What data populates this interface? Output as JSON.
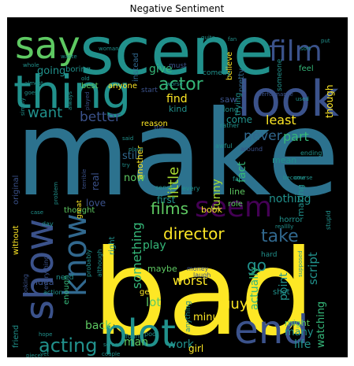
{
  "chart_data": {
    "type": "wordcloud",
    "title": "Negative Sentiment",
    "background": "#000000",
    "palette": [
      "#fde725",
      "#21918c",
      "#3b528b",
      "#5ec962",
      "#440154",
      "#31688e",
      "#35b779",
      "#aadc32",
      "#2c728e",
      "#472d7b"
    ],
    "words": [
      {
        "text": "make",
        "weight": 100,
        "color": "#2c728e"
      },
      {
        "text": "bad",
        "weight": 96,
        "color": "#fde725"
      },
      {
        "text": "scene",
        "weight": 72,
        "color": "#21918c"
      },
      {
        "text": "look",
        "weight": 52,
        "color": "#3b528b"
      },
      {
        "text": "thing",
        "weight": 50,
        "color": "#21918c"
      },
      {
        "text": "say",
        "weight": 42,
        "color": "#5ec962"
      },
      {
        "text": "show",
        "weight": 44,
        "color": "#3b528b"
      },
      {
        "text": "know",
        "weight": 34,
        "color": "#31688e"
      },
      {
        "text": "plot",
        "weight": 38,
        "color": "#21918c"
      },
      {
        "text": "end",
        "weight": 36,
        "color": "#3b528b"
      },
      {
        "text": "seem",
        "weight": 30,
        "color": "#440154"
      },
      {
        "text": "acting",
        "weight": 20,
        "color": "#21918c"
      },
      {
        "text": "film",
        "weight": 30,
        "color": "#3b528b"
      },
      {
        "text": "films",
        "weight": 17,
        "color": "#5ec962"
      },
      {
        "text": "director",
        "weight": 17,
        "color": "#fde725"
      },
      {
        "text": "take",
        "weight": 18,
        "color": "#31688e"
      },
      {
        "text": "actor",
        "weight": 18,
        "color": "#35b779"
      },
      {
        "text": "never",
        "weight": 15,
        "color": "#31688e"
      },
      {
        "text": "better",
        "weight": 14,
        "color": "#3b528b"
      },
      {
        "text": "want",
        "weight": 15,
        "color": "#21918c"
      },
      {
        "text": "little",
        "weight": 15,
        "color": "#aadc32"
      },
      {
        "text": "funny",
        "weight": 12,
        "color": "#aadc32"
      },
      {
        "text": "something",
        "weight": 14,
        "color": "#35b779"
      },
      {
        "text": "fact",
        "weight": 12,
        "color": "#35b779"
      },
      {
        "text": "least",
        "weight": 12,
        "color": "#fde725"
      },
      {
        "text": "come",
        "weight": 10,
        "color": "#21918c"
      },
      {
        "text": "part",
        "weight": 12,
        "color": "#35b779"
      },
      {
        "text": "go",
        "weight": 14,
        "color": "#21918c"
      },
      {
        "text": "script",
        "weight": 12,
        "color": "#21918c"
      },
      {
        "text": "watching",
        "weight": 11,
        "color": "#35b779"
      },
      {
        "text": "actually",
        "weight": 12,
        "color": "#35b779"
      },
      {
        "text": "worst",
        "weight": 13,
        "color": "#fde725"
      },
      {
        "text": "guy",
        "weight": 14,
        "color": "#fde725"
      },
      {
        "text": "point",
        "weight": 12,
        "color": "#21918c"
      },
      {
        "text": "back",
        "weight": 12,
        "color": "#5ec962"
      },
      {
        "text": "work",
        "weight": 12,
        "color": "#21918c"
      },
      {
        "text": "man",
        "weight": 12,
        "color": "#5ec962"
      },
      {
        "text": "minute",
        "weight": 11,
        "color": "#fde725"
      },
      {
        "text": "life",
        "weight": 12,
        "color": "#21918c"
      },
      {
        "text": "many",
        "weight": 11,
        "color": "#21918c"
      },
      {
        "text": "lot",
        "weight": 12,
        "color": "#5ec962"
      },
      {
        "text": "play",
        "weight": 11,
        "color": "#35b779"
      },
      {
        "text": "nothing",
        "weight": 11,
        "color": "#21918c"
      },
      {
        "text": "making",
        "weight": 9,
        "color": "#21918c"
      },
      {
        "text": "give",
        "weight": 11,
        "color": "#35b779"
      },
      {
        "text": "going",
        "weight": 10,
        "color": "#21918c"
      },
      {
        "text": "find",
        "weight": 11,
        "color": "#fde725"
      },
      {
        "text": "still",
        "weight": 10,
        "color": "#31688e"
      },
      {
        "text": "now",
        "weight": 10,
        "color": "#5ec962"
      },
      {
        "text": "another",
        "weight": 9,
        "color": "#fde725"
      },
      {
        "text": "real",
        "weight": 10,
        "color": "#3b528b"
      },
      {
        "text": "love",
        "weight": 9,
        "color": "#3b528b"
      },
      {
        "text": "first",
        "weight": 10,
        "color": "#21918c"
      },
      {
        "text": "book",
        "weight": 9,
        "color": "#fde725"
      },
      {
        "text": "thought",
        "weight": 8,
        "color": "#5ec962"
      },
      {
        "text": "though",
        "weight": 10,
        "color": "#fde725"
      },
      {
        "text": "trying",
        "weight": 8,
        "color": "#21918c"
      },
      {
        "text": "reason",
        "weight": 8,
        "color": "#fde725"
      },
      {
        "text": "kind",
        "weight": 8,
        "color": "#21918c"
      },
      {
        "text": "feel",
        "weight": 8,
        "color": "#35b779"
      },
      {
        "text": "pretty",
        "weight": 8,
        "color": "#31688e"
      },
      {
        "text": "mean",
        "weight": 8,
        "color": "#21918c"
      },
      {
        "text": "line",
        "weight": 8,
        "color": "#5ec962"
      },
      {
        "text": "role",
        "weight": 7,
        "color": "#5ec962"
      },
      {
        "text": "horror",
        "weight": 7,
        "color": "#21918c"
      },
      {
        "text": "maybe",
        "weight": 8,
        "color": "#5ec962"
      },
      {
        "text": "idea",
        "weight": 8,
        "color": "#3b528b"
      },
      {
        "text": "kid",
        "weight": 8,
        "color": "#fde725"
      },
      {
        "text": "might",
        "weight": 8,
        "color": "#5ec962"
      },
      {
        "text": "friend",
        "weight": 8,
        "color": "#21918c"
      },
      {
        "text": "gets",
        "weight": 7,
        "color": "#fde725"
      },
      {
        "text": "without",
        "weight": 7,
        "color": "#fde725"
      },
      {
        "text": "original",
        "weight": 7,
        "color": "#3b528b"
      },
      {
        "text": "great",
        "weight": 7,
        "color": "#fde725"
      },
      {
        "text": "enough",
        "weight": 7,
        "color": "#35b779"
      },
      {
        "text": "right",
        "weight": 7,
        "color": "#21918c"
      },
      {
        "text": "instead",
        "weight": 7,
        "color": "#31688e"
      },
      {
        "text": "best",
        "weight": 7,
        "color": "#5ec962"
      },
      {
        "text": "boring",
        "weight": 7,
        "color": "#21918c"
      },
      {
        "text": "anyone",
        "weight": 7,
        "color": "#fde725"
      },
      {
        "text": "start",
        "weight": 7,
        "color": "#3b528b"
      },
      {
        "text": "saw",
        "weight": 8,
        "color": "#3b528b"
      },
      {
        "text": "long",
        "weight": 7,
        "color": "#21918c"
      },
      {
        "text": "believe",
        "weight": 7,
        "color": "#fde725"
      },
      {
        "text": "someone",
        "weight": 6,
        "color": "#21918c"
      },
      {
        "text": "must",
        "weight": 7,
        "color": "#3b528b"
      },
      {
        "text": "comedy",
        "weight": 6,
        "color": "#21918c"
      },
      {
        "text": "interesting",
        "weight": 6,
        "color": "#35b779"
      },
      {
        "text": "cast",
        "weight": 7,
        "color": "#21918c"
      },
      {
        "text": "either",
        "weight": 6,
        "color": "#21918c"
      },
      {
        "text": "done",
        "weight": 6,
        "color": "#21918c"
      },
      {
        "text": "watched",
        "weight": 6,
        "color": "#3b528b"
      },
      {
        "text": "found",
        "weight": 6,
        "color": "#21918c"
      },
      {
        "text": "poor",
        "weight": 6,
        "color": "#21918c"
      },
      {
        "text": "girl",
        "weight": 8,
        "color": "#fde725"
      },
      {
        "text": "money",
        "weight": 6,
        "color": "#3b528b"
      },
      {
        "text": "laugh",
        "weight": 6,
        "color": "#3b528b"
      },
      {
        "text": "shot",
        "weight": 7,
        "color": "#21918c"
      },
      {
        "text": "hard",
        "weight": 7,
        "color": "#21918c"
      },
      {
        "text": "sense",
        "weight": 6,
        "color": "#21918c"
      },
      {
        "text": "every",
        "weight": 6,
        "color": "#21918c"
      },
      {
        "text": "far",
        "weight": 6,
        "color": "#21918c"
      },
      {
        "text": "awful",
        "weight": 6,
        "color": "#21918c"
      },
      {
        "text": "around",
        "weight": 6,
        "color": "#3b528b"
      },
      {
        "text": "ending",
        "weight": 6,
        "color": "#21918c"
      },
      {
        "text": "stupid",
        "weight": 6,
        "color": "#21918c"
      },
      {
        "text": "probably",
        "weight": 6,
        "color": "#21918c"
      },
      {
        "text": "although",
        "weight": 6,
        "color": "#21918c"
      },
      {
        "text": "anything",
        "weight": 6,
        "color": "#21918c"
      },
      {
        "text": "action",
        "weight": 6,
        "color": "#21918c"
      },
      {
        "text": "everything",
        "weight": 6,
        "color": "#3b528b"
      },
      {
        "text": "looking",
        "weight": 6,
        "color": "#3b528b"
      },
      {
        "text": "day",
        "weight": 6,
        "color": "#21918c"
      },
      {
        "text": "need",
        "weight": 6,
        "color": "#21918c"
      },
      {
        "text": "rather",
        "weight": 6,
        "color": "#21918c"
      },
      {
        "text": "audience",
        "weight": 6,
        "color": "#3b528b"
      },
      {
        "text": "woman",
        "weight": 5,
        "color": "#21918c"
      },
      {
        "text": "waste",
        "weight": 5,
        "color": "#21918c"
      },
      {
        "text": "whole",
        "weight": 5,
        "color": "#21918c"
      },
      {
        "text": "almost",
        "weight": 5,
        "color": "#21918c"
      },
      {
        "text": "goes",
        "weight": 5,
        "color": "#21918c"
      },
      {
        "text": "always",
        "weight": 5,
        "color": "#21918c"
      },
      {
        "text": "played",
        "weight": 5,
        "color": "#3b528b"
      },
      {
        "text": "simply",
        "weight": 5,
        "color": "#21918c"
      },
      {
        "text": "sort",
        "weight": 5,
        "color": "#21918c"
      },
      {
        "text": "put",
        "weight": 5,
        "color": "#21918c"
      },
      {
        "text": "used",
        "weight": 5,
        "color": "#21918c"
      },
      {
        "text": "performance",
        "weight": 5,
        "color": "#3b528b"
      },
      {
        "text": "course",
        "weight": 5,
        "color": "#21918c"
      },
      {
        "text": "supposed",
        "weight": 5,
        "color": "#21918c"
      },
      {
        "text": "realllly",
        "weight": 5,
        "color": "#21918c"
      },
      {
        "text": "become",
        "weight": 5,
        "color": "#21918c"
      },
      {
        "text": "terrible",
        "weight": 5,
        "color": "#3b528b"
      },
      {
        "text": "place",
        "weight": 5,
        "color": "#21918c"
      },
      {
        "text": "try",
        "weight": 5,
        "color": "#21918c"
      },
      {
        "text": "said",
        "weight": 5,
        "color": "#21918c"
      },
      {
        "text": "worse",
        "weight": 5,
        "color": "#21918c"
      },
      {
        "text": "old",
        "weight": 5,
        "color": "#21918c"
      },
      {
        "text": "fan",
        "weight": 5,
        "color": "#21918c"
      },
      {
        "text": "quite",
        "weight": 5,
        "color": "#21918c"
      },
      {
        "text": "yet",
        "weight": 5,
        "color": "#21918c"
      },
      {
        "text": "piece",
        "weight": 5,
        "color": "#21918c"
      },
      {
        "text": "couple",
        "weight": 5,
        "color": "#21918c"
      },
      {
        "text": "screen",
        "weight": 5,
        "color": "#21918c"
      },
      {
        "text": "star",
        "weight": 5,
        "color": "#3b528b"
      },
      {
        "text": "problem",
        "weight": 5,
        "color": "#21918c"
      },
      {
        "text": "hope",
        "weight": 5,
        "color": "#21918c"
      },
      {
        "text": "case",
        "weight": 5,
        "color": "#21918c"
      }
    ]
  }
}
